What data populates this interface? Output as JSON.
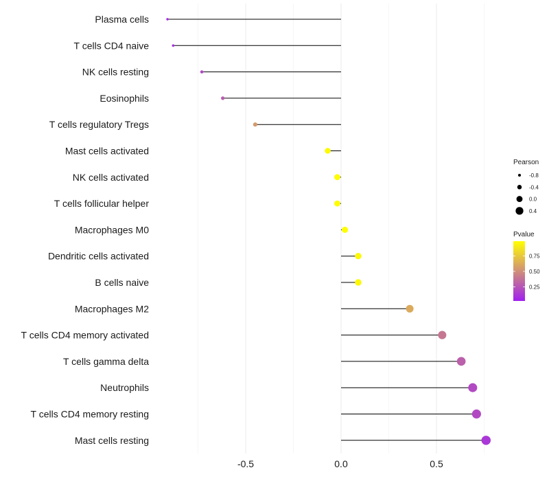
{
  "chart_data": {
    "type": "lollipop",
    "title": "",
    "xlabel": "",
    "ylabel": "",
    "xlim": [
      -0.91,
      0.78
    ],
    "x_ticks": [
      -0.5,
      0.0,
      0.5
    ],
    "x_tick_labels": [
      "-0.5",
      "0.0",
      "0.5"
    ],
    "grid": true,
    "baseline": 0.0,
    "categories": [
      "Plasma cells",
      "T cells CD4 naive",
      "NK cells resting",
      "Eosinophils",
      "T cells regulatory  Tregs",
      "Mast cells activated",
      "NK cells activated",
      "T cells follicular helper",
      "Macrophages M0",
      "Dendritic cells activated",
      "B cells naive",
      "Macrophages M2",
      "T cells CD4 memory activated",
      "T cells gamma delta",
      "Neutrophils",
      "T cells CD4 memory resting",
      "Mast cells resting"
    ],
    "series": [
      {
        "name": "Pearson correlation",
        "values": [
          -0.91,
          -0.88,
          -0.73,
          -0.62,
          -0.45,
          -0.07,
          -0.02,
          -0.02,
          0.02,
          0.09,
          0.09,
          0.36,
          0.53,
          0.63,
          0.69,
          0.71,
          0.76
        ],
        "pvalues": [
          0.05,
          0.08,
          0.18,
          0.28,
          0.55,
          0.97,
          0.98,
          0.98,
          0.98,
          0.96,
          0.96,
          0.62,
          0.4,
          0.3,
          0.2,
          0.2,
          0.12
        ]
      }
    ],
    "legend": {
      "position": "right",
      "size_title": "Pearson",
      "size_breaks": [
        -0.8,
        -0.4,
        0.0,
        0.4
      ],
      "size_labels": [
        "-0.8",
        "-0.4",
        "0.0",
        "0.4"
      ],
      "color_title": "Pvalue",
      "color_breaks": [
        0.75,
        0.5,
        0.25
      ],
      "color_labels": [
        "0.75",
        "0.50",
        "0.25"
      ],
      "color_range": [
        0.02,
        0.99
      ],
      "color_low": "#a020f0",
      "color_high": "#ffff00"
    }
  }
}
